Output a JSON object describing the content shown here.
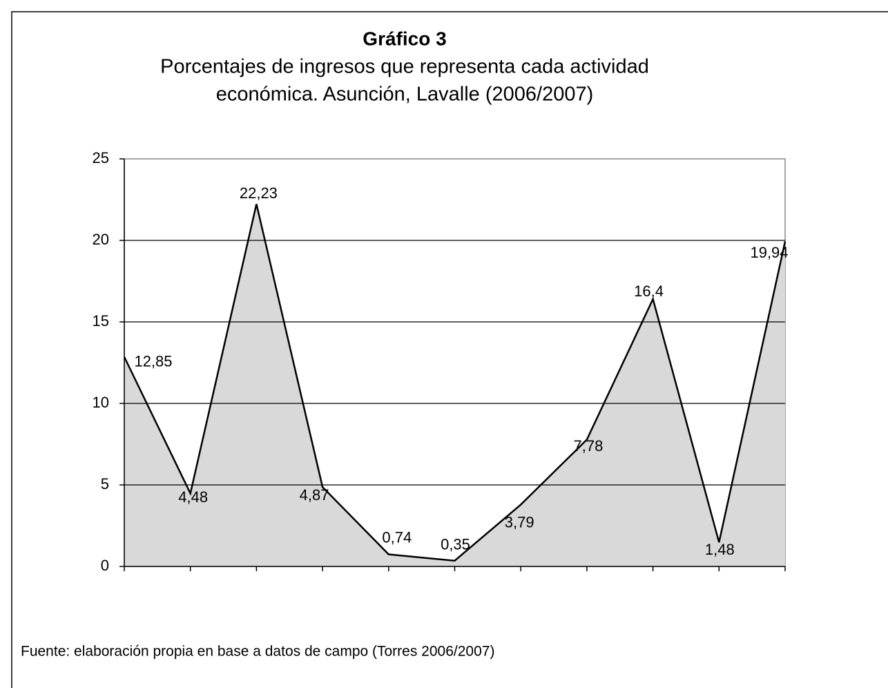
{
  "chart_data": {
    "type": "area",
    "title": "Gráfico 3",
    "subtitle": [
      "Porcentajes de ingresos que representa cada actividad",
      "económica. Asunción, Lavalle (2006/2007)"
    ],
    "categories": [
      null,
      null,
      null,
      null,
      null,
      null,
      null,
      null,
      null,
      null,
      null
    ],
    "values": [
      12.85,
      4.48,
      22.23,
      4.87,
      0.74,
      0.35,
      3.79,
      7.78,
      16.4,
      1.48,
      19.94
    ],
    "value_labels": [
      "12,85",
      "4,48",
      "22,23",
      "4,87",
      "0,74",
      "0,35",
      "3,79",
      "7,78",
      "16,4",
      "1,48",
      "19,94"
    ],
    "color": "#d9d9d9",
    "ylim": [
      0,
      25
    ],
    "yticks": [
      0,
      5,
      10,
      15,
      20,
      25
    ],
    "grid": true,
    "source": "Fuente: elaboración propia en base a datos de campo (Torres 2006/2007)"
  }
}
